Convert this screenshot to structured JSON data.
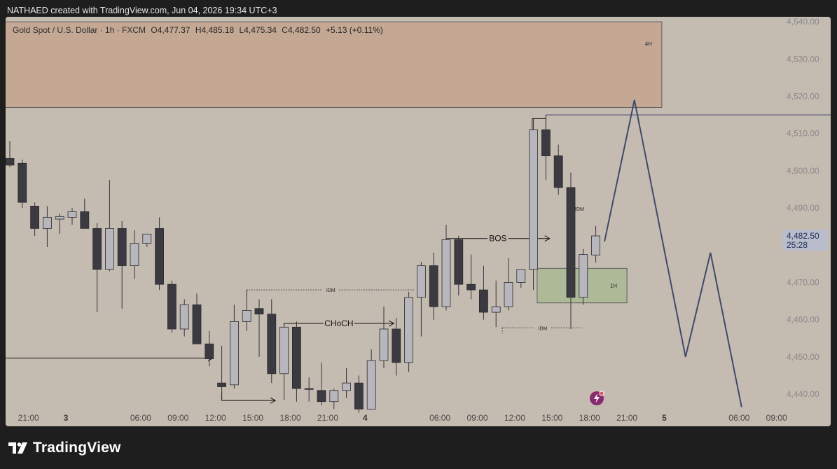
{
  "header": {
    "credit": "NATHAED created with TradingView.com, Jun 04, 2026 19:34 UTC+3"
  },
  "legend": {
    "symbol": "Gold Spot / U.S. Dollar · 1h · FXCM",
    "o_label": "O",
    "o_value": "4,477.37",
    "h_label": "H",
    "h_value": "4,485.18",
    "l_label": "L",
    "l_value": "4,475.34",
    "c_label": "C",
    "c_value": "4,482.50",
    "change": "+5.13 (+0.11%)"
  },
  "price_tag": {
    "price": "4,482.50",
    "countdown": "25:28"
  },
  "brand": {
    "name": "TradingView"
  },
  "colors": {
    "background": "#c5bcb1",
    "bull_body": "#b6b6bc",
    "bear_body": "#3a3a40",
    "wick": "#33333a",
    "supply_zone": "#c3a48f",
    "demand_zone": "#a9b893",
    "projection_line": "#3f4a6b",
    "price_tag_bg": "#b8bccb",
    "outside_bg": "#1e1e1e"
  },
  "chart_data": {
    "type": "candlestick",
    "symbol": "Gold Spot / U.S. Dollar",
    "interval": "1h",
    "y_axis": {
      "ticks": [
        4540,
        4530,
        4520,
        4510,
        4500,
        4490,
        4480,
        4470,
        4460,
        4450,
        4440
      ],
      "tick_labels": [
        "4,540.00",
        "4,530.00",
        "4,520.00",
        "4,510.00",
        "4,500.00",
        "4,490.00",
        "4,480.00",
        "4,470.00",
        "4,460.00",
        "4,450.00",
        "4,440.00"
      ]
    },
    "x_axis": {
      "labels": [
        {
          "text": "18:00",
          "bar": -1.5,
          "bold": false
        },
        {
          "text": "21:00",
          "bar": 1.5,
          "bold": false
        },
        {
          "text": "3",
          "bar": 4.5,
          "bold": true
        },
        {
          "text": "06:00",
          "bar": 10.5,
          "bold": false
        },
        {
          "text": "09:00",
          "bar": 13.5,
          "bold": false
        },
        {
          "text": "12:00",
          "bar": 16.5,
          "bold": false
        },
        {
          "text": "15:00",
          "bar": 19.5,
          "bold": false
        },
        {
          "text": "18:00",
          "bar": 22.5,
          "bold": false
        },
        {
          "text": "21:00",
          "bar": 25.5,
          "bold": false
        },
        {
          "text": "4",
          "bar": 28.5,
          "bold": true
        },
        {
          "text": "06:00",
          "bar": 34.5,
          "bold": false
        },
        {
          "text": "09:00",
          "bar": 37.5,
          "bold": false
        },
        {
          "text": "12:00",
          "bar": 40.5,
          "bold": false
        },
        {
          "text": "15:00",
          "bar": 43.5,
          "bold": false
        },
        {
          "text": "18:00",
          "bar": 46.5,
          "bold": false
        },
        {
          "text": "21:00",
          "bar": 49.5,
          "bold": false
        },
        {
          "text": "5",
          "bar": 52.5,
          "bold": true
        },
        {
          "text": "06:00",
          "bar": 58.5,
          "bold": false
        },
        {
          "text": "09:00",
          "bar": 61.5,
          "bold": false
        }
      ]
    },
    "candles": [
      {
        "o": 4503.3,
        "h": 4508.0,
        "l": 4501.0,
        "c": 4501.5
      },
      {
        "o": 4502.0,
        "h": 4503.0,
        "l": 4490.0,
        "c": 4491.5
      },
      {
        "o": 4490.5,
        "h": 4491.5,
        "l": 4482.5,
        "c": 4484.5
      },
      {
        "o": 4484.5,
        "h": 4490.5,
        "l": 4479.5,
        "c": 4487.5
      },
      {
        "o": 4487.0,
        "h": 4488.5,
        "l": 4483.0,
        "c": 4487.7
      },
      {
        "o": 4487.5,
        "h": 4490.0,
        "l": 4485.5,
        "c": 4489.0
      },
      {
        "o": 4489.0,
        "h": 4492.5,
        "l": 4484.5,
        "c": 4484.5
      },
      {
        "o": 4484.5,
        "h": 4486.0,
        "l": 4462.0,
        "c": 4473.5
      },
      {
        "o": 4473.5,
        "h": 4497.5,
        "l": 4473.0,
        "c": 4484.5
      },
      {
        "o": 4484.5,
        "h": 4486.5,
        "l": 4463.0,
        "c": 4474.5
      },
      {
        "o": 4474.5,
        "h": 4484.0,
        "l": 4471.0,
        "c": 4480.5
      },
      {
        "o": 4480.5,
        "h": 4482.5,
        "l": 4479.5,
        "c": 4483.0
      },
      {
        "o": 4484.5,
        "h": 4487.5,
        "l": 4468.0,
        "c": 4469.5
      },
      {
        "o": 4469.5,
        "h": 4470.5,
        "l": 4456.5,
        "c": 4457.5
      },
      {
        "o": 4457.5,
        "h": 4465.5,
        "l": 4455.5,
        "c": 4464.0
      },
      {
        "o": 4464.0,
        "h": 4467.0,
        "l": 4453.5,
        "c": 4453.5
      },
      {
        "o": 4453.5,
        "h": 4457.0,
        "l": 4447.5,
        "c": 4449.5
      },
      {
        "o": 4443.0,
        "h": 4453.0,
        "l": 4440.0,
        "c": 4442.0
      },
      {
        "o": 4442.5,
        "h": 4464.0,
        "l": 4441.5,
        "c": 4459.5
      },
      {
        "o": 4459.5,
        "h": 4468.0,
        "l": 4457.0,
        "c": 4462.5
      },
      {
        "o": 4463.0,
        "h": 4465.5,
        "l": 4450.0,
        "c": 4461.5
      },
      {
        "o": 4461.5,
        "h": 4465.5,
        "l": 4443.0,
        "c": 4445.5
      },
      {
        "o": 4445.5,
        "h": 4458.5,
        "l": 4438.5,
        "c": 4458.0
      },
      {
        "o": 4458.0,
        "h": 4459.5,
        "l": 4438.0,
        "c": 4441.5
      },
      {
        "o": 4441.5,
        "h": 4444.5,
        "l": 4438.0,
        "c": 4441.3
      },
      {
        "o": 4441.0,
        "h": 4448.5,
        "l": 4437.0,
        "c": 4438.0
      },
      {
        "o": 4438.0,
        "h": 4441.5,
        "l": 4436.0,
        "c": 4441.0
      },
      {
        "o": 4441.0,
        "h": 4447.0,
        "l": 4439.0,
        "c": 4443.0
      },
      {
        "o": 4443.0,
        "h": 4445.0,
        "l": 4435.0,
        "c": 4436.0
      },
      {
        "o": 4436.0,
        "h": 4452.0,
        "l": 4436.0,
        "c": 4449.0
      },
      {
        "o": 4449.0,
        "h": 4463.5,
        "l": 4447.0,
        "c": 4457.5
      },
      {
        "o": 4457.5,
        "h": 4460.5,
        "l": 4445.0,
        "c": 4448.5
      },
      {
        "o": 4448.5,
        "h": 4467.5,
        "l": 4446.0,
        "c": 4466.0
      },
      {
        "o": 4466.0,
        "h": 4475.5,
        "l": 4455.5,
        "c": 4474.5
      },
      {
        "o": 4474.5,
        "h": 4478.0,
        "l": 4460.0,
        "c": 4463.5
      },
      {
        "o": 4463.5,
        "h": 4485.5,
        "l": 4462.5,
        "c": 4481.5
      },
      {
        "o": 4481.5,
        "h": 4482.5,
        "l": 4466.5,
        "c": 4469.5
      },
      {
        "o": 4469.5,
        "h": 4477.5,
        "l": 4465.5,
        "c": 4468.0
      },
      {
        "o": 4468.0,
        "h": 4474.5,
        "l": 4460.0,
        "c": 4462.0
      },
      {
        "o": 4462.0,
        "h": 4470.5,
        "l": 4458.0,
        "c": 4463.5
      },
      {
        "o": 4463.5,
        "h": 4476.5,
        "l": 4462.5,
        "c": 4470.0
      },
      {
        "o": 4470.0,
        "h": 4473.5,
        "l": 4468.5,
        "c": 4473.5
      },
      {
        "o": 4473.5,
        "h": 4514.0,
        "l": 4468.0,
        "c": 4511.0
      },
      {
        "o": 4511.0,
        "h": 4513.5,
        "l": 4497.5,
        "c": 4504.0
      },
      {
        "o": 4504.0,
        "h": 4507.0,
        "l": 4493.5,
        "c": 4495.5
      },
      {
        "o": 4495.5,
        "h": 4499.5,
        "l": 4457.5,
        "c": 4466.0
      },
      {
        "o": 4466.0,
        "h": 4479.0,
        "l": 4464.0,
        "c": 4477.5
      },
      {
        "o": 4477.37,
        "h": 4485.18,
        "l": 4475.34,
        "c": 4482.5
      }
    ],
    "annotations": [
      {
        "type": "zone",
        "label": "4H",
        "bar_from": -0.5,
        "bar_to": 52.3,
        "y_from": 4517.0,
        "y_to": 4540.0
      },
      {
        "type": "zone",
        "label": "1H",
        "bar_from": 42.3,
        "bar_to": 49.5,
        "y_from": 4464.5,
        "y_to": 4473.8
      },
      {
        "type": "hline",
        "label": "",
        "bar_from": 43.0,
        "bar_to": 66.0,
        "y": 4515.0
      },
      {
        "type": "arrow",
        "label": "",
        "bar_from": -0.5,
        "bar_to": 16.3,
        "y": 4449.7
      },
      {
        "type": "arrow",
        "label": "",
        "bar_from": 17.0,
        "bar_to": 21.3,
        "y": 4438.3
      },
      {
        "type": "arrow",
        "label": "CHoCH",
        "bar_from": 22.0,
        "bar_to": 30.8,
        "y": 4459.0
      },
      {
        "type": "arrow",
        "label": "BOS",
        "bar_from": 35.0,
        "bar_to": 43.3,
        "y": 4481.8
      },
      {
        "type": "dotted",
        "label": "IDM",
        "bar_from": 19.0,
        "bar_to": 32.5,
        "y": 4468.0
      },
      {
        "type": "dotted",
        "label": "IDM",
        "bar_from": 39.5,
        "bar_to": 46.0,
        "y": 4457.8
      },
      {
        "type": "dotted",
        "label": "IDM",
        "bar_from": 45.0,
        "bar_to": 46.2,
        "y": 4489.8
      }
    ],
    "projection": [
      {
        "bar": 47.7,
        "y": 4481.0
      },
      {
        "bar": 50.1,
        "y": 4519.0
      },
      {
        "bar": 54.2,
        "y": 4450.0
      },
      {
        "bar": 56.2,
        "y": 4478.0
      },
      {
        "bar": 58.7,
        "y": 4436.5
      }
    ]
  }
}
